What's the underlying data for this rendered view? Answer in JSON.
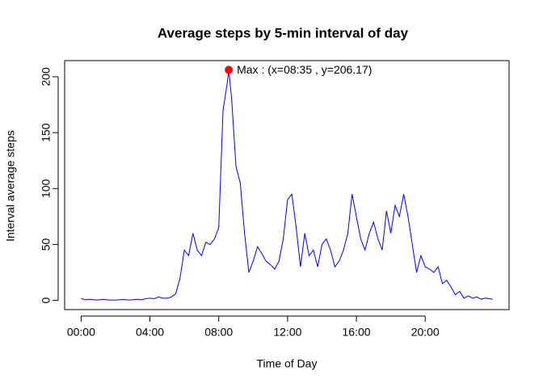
{
  "chart_data": {
    "type": "line",
    "title": "Average steps by 5-min interval of day",
    "xlabel": "Time of Day",
    "ylabel": "Interval average steps",
    "color": "#0000ff",
    "x": [
      0,
      0.25,
      0.5,
      0.75,
      1,
      1.25,
      1.5,
      1.75,
      2,
      2.25,
      2.5,
      2.75,
      3,
      3.25,
      3.5,
      3.75,
      4,
      4.25,
      4.5,
      4.75,
      5,
      5.25,
      5.5,
      5.75,
      6,
      6.25,
      6.5,
      6.75,
      7,
      7.25,
      7.5,
      7.75,
      8,
      8.25,
      8.5,
      8.583,
      8.75,
      9,
      9.25,
      9.5,
      9.75,
      10,
      10.25,
      10.5,
      10.75,
      11,
      11.25,
      11.5,
      11.75,
      12,
      12.25,
      12.5,
      12.75,
      13,
      13.25,
      13.5,
      13.75,
      14,
      14.25,
      14.5,
      14.75,
      15,
      15.25,
      15.5,
      15.75,
      16,
      16.25,
      16.5,
      16.75,
      17,
      17.25,
      17.5,
      17.75,
      18,
      18.25,
      18.5,
      18.75,
      19,
      19.25,
      19.5,
      19.75,
      20,
      20.25,
      20.5,
      20.75,
      21,
      21.25,
      21.5,
      21.75,
      22,
      22.25,
      22.5,
      22.75,
      23,
      23.25,
      23.5,
      23.75,
      23.917
    ],
    "values": [
      1.7,
      0.5,
      1,
      0.5,
      0.3,
      1,
      0.5,
      0.2,
      0.3,
      0.5,
      0.8,
      0.3,
      0.5,
      1,
      0.5,
      1.5,
      2,
      1.5,
      3,
      2,
      2,
      3,
      6,
      20,
      45,
      40,
      60,
      45,
      40,
      52,
      50,
      55,
      65,
      170,
      195,
      206.17,
      180,
      120,
      105,
      60,
      25,
      35,
      48,
      42,
      35,
      32,
      28,
      35,
      55,
      90,
      95,
      65,
      30,
      60,
      40,
      45,
      30,
      50,
      55,
      45,
      30,
      35,
      45,
      60,
      95,
      75,
      55,
      45,
      60,
      70,
      55,
      45,
      80,
      60,
      85,
      75,
      95,
      75,
      50,
      25,
      40,
      30,
      28,
      25,
      30,
      15,
      18,
      12,
      5,
      8,
      2,
      4,
      2,
      3,
      1,
      2,
      1.5,
      1
    ],
    "max_point": {
      "x": 8.583,
      "y": 206.17,
      "color": "#ff0000",
      "label": "Max : (x=08:35 , y=206.17)"
    },
    "xlim": [
      -0.957,
      24.874
    ],
    "xticks": [
      {
        "value": 0,
        "label": "00:00"
      },
      {
        "value": 4,
        "label": "04:00"
      },
      {
        "value": 8,
        "label": "08:00"
      },
      {
        "value": 12,
        "label": "12:00"
      },
      {
        "value": 16,
        "label": "16:00"
      },
      {
        "value": 20,
        "label": "20:00"
      }
    ],
    "ylim": [
      -8.25,
      214.42
    ],
    "yticks": [
      0,
      50,
      100,
      150,
      200
    ]
  }
}
